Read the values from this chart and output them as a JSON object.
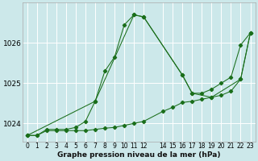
{
  "title": "Graphe pression niveau de la mer (hPa)",
  "background_color": "#cce8ea",
  "grid_color": "#ffffff",
  "line_color": "#1a6e1a",
  "series": [
    {
      "x": [
        0,
        1,
        2,
        3,
        4,
        5,
        6,
        7,
        8,
        9,
        10,
        11,
        12,
        16,
        17,
        18,
        19,
        20,
        21,
        22,
        23
      ],
      "y": [
        1023.7,
        1023.7,
        1023.85,
        1023.85,
        1023.85,
        1023.9,
        1024.05,
        1024.55,
        1025.3,
        1025.65,
        1026.45,
        1026.7,
        1026.65,
        1025.2,
        1024.75,
        1024.75,
        1024.85,
        1025.0,
        1025.15,
        1025.95,
        1026.25
      ]
    },
    {
      "x": [
        0,
        1,
        2,
        3,
        4,
        5,
        6,
        7,
        8,
        9,
        10,
        11,
        12,
        14,
        15,
        16,
        17,
        18,
        19,
        20,
        21,
        22,
        23
      ],
      "y": [
        1023.7,
        1023.7,
        1023.82,
        1023.82,
        1023.82,
        1023.82,
        1023.82,
        1023.85,
        1023.88,
        1023.9,
        1023.95,
        1024.0,
        1024.05,
        1024.3,
        1024.4,
        1024.52,
        1024.55,
        1024.6,
        1024.65,
        1024.7,
        1024.8,
        1025.1,
        1026.25
      ]
    },
    {
      "x": [
        0,
        7,
        11,
        12,
        16,
        17,
        19,
        22,
        23
      ],
      "y": [
        1023.7,
        1024.55,
        1026.7,
        1026.65,
        1025.2,
        1024.75,
        1024.65,
        1025.1,
        1026.25
      ]
    }
  ],
  "ylim": [
    1023.55,
    1027.0
  ],
  "yticks": [
    1024,
    1025,
    1026
  ],
  "xlim": [
    -0.5,
    23.5
  ],
  "x_tick_positions": [
    0,
    1,
    2,
    3,
    4,
    5,
    6,
    7,
    8,
    9,
    10,
    11,
    12,
    14,
    15,
    16,
    17,
    18,
    19,
    20,
    21,
    22,
    23
  ],
  "x_tick_labels": [
    "0",
    "1",
    "2",
    "3",
    "4",
    "5",
    "6",
    "7",
    "8",
    "9",
    "10",
    "11",
    "12",
    "14",
    "15",
    "16",
    "17",
    "18",
    "19",
    "20",
    "21",
    "22",
    "23"
  ],
  "tick_fontsize": 5.5,
  "ytick_fontsize": 6.5,
  "title_fontsize": 6.5,
  "figsize": [
    3.2,
    2.0
  ],
  "dpi": 100
}
